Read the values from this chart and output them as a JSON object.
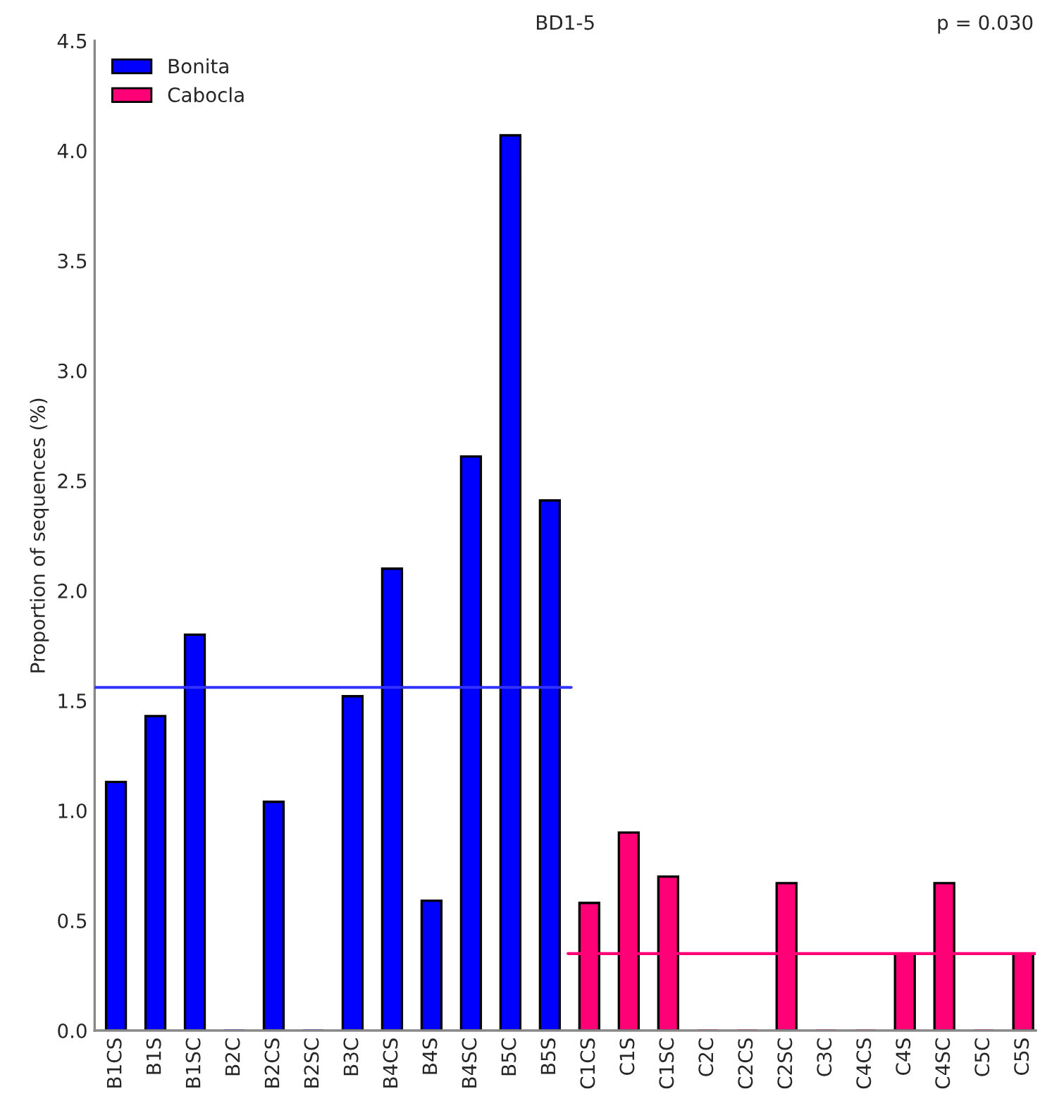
{
  "chart_data": {
    "type": "bar",
    "title": "BD1-5",
    "ylabel": "Proportion of sequences (%)",
    "categories": [
      "B1CS",
      "B1S",
      "B1SC",
      "B2C",
      "B2CS",
      "B2SC",
      "B3C",
      "B4CS",
      "B4S",
      "B4SC",
      "B5C",
      "B5S",
      "C1CS",
      "C1S",
      "C1SC",
      "C2C",
      "C2CS",
      "C2SC",
      "C3C",
      "C4CS",
      "C4S",
      "C4SC",
      "C5C",
      "C5S"
    ],
    "series": [
      {
        "name": "Bonita",
        "color": "#0000ff",
        "values": [
          1.13,
          1.43,
          1.8,
          0,
          1.04,
          0,
          1.52,
          2.1,
          0.59,
          2.61,
          4.07,
          2.41,
          null,
          null,
          null,
          null,
          null,
          null,
          null,
          null,
          null,
          null,
          null,
          null
        ]
      },
      {
        "name": "Cabocla",
        "color": "#ff0077",
        "values": [
          null,
          null,
          null,
          null,
          null,
          null,
          null,
          null,
          null,
          null,
          null,
          null,
          0.58,
          0.9,
          0.7,
          0,
          0,
          0.67,
          0,
          0,
          0.35,
          0.67,
          0,
          0.35
        ]
      }
    ],
    "ref_lines": [
      {
        "axis": "y",
        "value": 1.56,
        "color": "#3333ff"
      },
      {
        "axis": "y",
        "value": 0.35,
        "color": "#ff0077"
      }
    ],
    "annotations": [
      "p = 0.030"
    ],
    "ylim": [
      0,
      4.5
    ],
    "yticks": [
      {
        "value": 0,
        "label": "0.0"
      },
      0.5,
      {
        "value": 1,
        "label": "1.0"
      },
      1.5,
      {
        "value": 2,
        "label": "2.0"
      },
      2.5,
      {
        "value": 3,
        "label": "3.0"
      },
      3.5,
      {
        "value": 4,
        "label": "4.0"
      },
      4.5
    ],
    "legend": "top left",
    "grid": false
  }
}
